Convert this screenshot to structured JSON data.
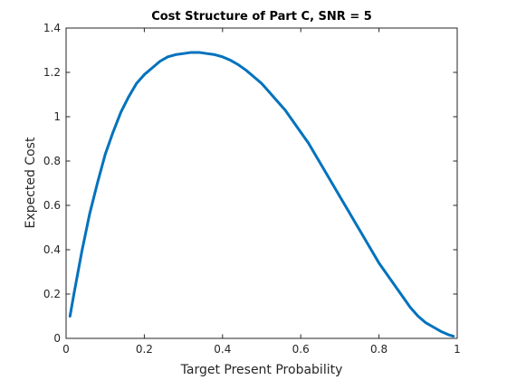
{
  "chart_data": {
    "type": "line",
    "title": "Cost Structure of Part C, SNR = 5",
    "xlabel": "Target Present Probability",
    "ylabel": "Expected Cost",
    "xlim": [
      0,
      1
    ],
    "ylim": [
      0,
      1.4
    ],
    "xticks": [
      0,
      0.2,
      0.4,
      0.6,
      0.8,
      1
    ],
    "xtick_labels": [
      "0",
      "0.2",
      "0.4",
      "0.6",
      "0.8",
      "1"
    ],
    "yticks": [
      0,
      0.2,
      0.4,
      0.6,
      0.8,
      1,
      1.2,
      1.4
    ],
    "ytick_labels": [
      "0",
      "0.2",
      "0.4",
      "0.6",
      "0.8",
      "1",
      "1.2",
      "1.4"
    ],
    "grid": false,
    "series": [
      {
        "color": "#0072bd",
        "x": [
          0.01,
          0.02,
          0.04,
          0.06,
          0.08,
          0.1,
          0.12,
          0.14,
          0.16,
          0.18,
          0.2,
          0.22,
          0.24,
          0.26,
          0.28,
          0.3,
          0.32,
          0.34,
          0.36,
          0.38,
          0.4,
          0.42,
          0.44,
          0.46,
          0.48,
          0.5,
          0.52,
          0.54,
          0.56,
          0.58,
          0.6,
          0.62,
          0.64,
          0.66,
          0.68,
          0.7,
          0.72,
          0.74,
          0.76,
          0.78,
          0.8,
          0.82,
          0.84,
          0.86,
          0.88,
          0.9,
          0.92,
          0.94,
          0.96,
          0.98,
          0.99
        ],
        "y": [
          0.1,
          0.2,
          0.39,
          0.56,
          0.7,
          0.83,
          0.93,
          1.02,
          1.09,
          1.15,
          1.19,
          1.22,
          1.25,
          1.27,
          1.28,
          1.285,
          1.29,
          1.29,
          1.285,
          1.28,
          1.27,
          1.255,
          1.235,
          1.21,
          1.18,
          1.15,
          1.11,
          1.07,
          1.03,
          0.98,
          0.93,
          0.88,
          0.82,
          0.76,
          0.7,
          0.64,
          0.58,
          0.52,
          0.46,
          0.4,
          0.34,
          0.29,
          0.24,
          0.19,
          0.14,
          0.1,
          0.07,
          0.05,
          0.03,
          0.015,
          0.01
        ]
      }
    ]
  }
}
